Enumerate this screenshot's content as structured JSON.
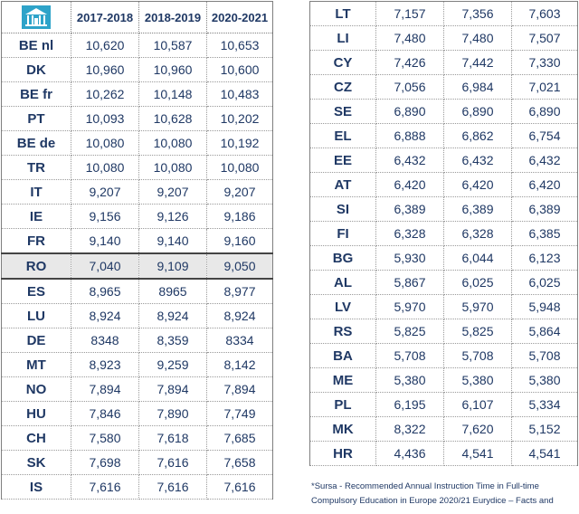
{
  "header": {
    "col1": "2017-2018",
    "col2": "2018-2019",
    "col3": "2020-2021"
  },
  "left_rows": [
    {
      "code": "BE nl",
      "v1": "10,620",
      "v2": "10,587",
      "v3": "10,653"
    },
    {
      "code": "DK",
      "v1": "10,960",
      "v2": "10,960",
      "v3": "10,600"
    },
    {
      "code": "BE fr",
      "v1": "10,262",
      "v2": "10,148",
      "v3": "10,483"
    },
    {
      "code": "PT",
      "v1": "10,093",
      "v2": "10,628",
      "v3": "10,202"
    },
    {
      "code": "BE de",
      "v1": "10,080",
      "v2": "10,080",
      "v3": "10,192"
    },
    {
      "code": "TR",
      "v1": "10,080",
      "v2": "10,080",
      "v3": "10,080"
    },
    {
      "code": "IT",
      "v1": "9,207",
      "v2": "9,207",
      "v3": "9,207"
    },
    {
      "code": "IE",
      "v1": "9,156",
      "v2": "9,126",
      "v3": "9,186"
    },
    {
      "code": "FR",
      "v1": "9,140",
      "v2": "9,140",
      "v3": "9,160"
    },
    {
      "code": "RO",
      "v1": "7,040",
      "v2": "9,109",
      "v3": "9,050"
    },
    {
      "code": "ES",
      "v1": "8,965",
      "v2": "8965",
      "v3": "8,977"
    },
    {
      "code": "LU",
      "v1": "8,924",
      "v2": "8,924",
      "v3": "8,924"
    },
    {
      "code": "DE",
      "v1": "8348",
      "v2": "8,359",
      "v3": "8334"
    },
    {
      "code": "MT",
      "v1": "8,923",
      "v2": "9,259",
      "v3": "8,142"
    },
    {
      "code": "NO",
      "v1": "7,894",
      "v2": "7,894",
      "v3": "7,894"
    },
    {
      "code": "HU",
      "v1": "7,846",
      "v2": "7,890",
      "v3": "7,749"
    },
    {
      "code": "CH",
      "v1": "7,580",
      "v2": "7,618",
      "v3": "7,685"
    },
    {
      "code": "SK",
      "v1": "7,698",
      "v2": "7,616",
      "v3": "7,658"
    },
    {
      "code": "IS",
      "v1": "7,616",
      "v2": "7,616",
      "v3": "7,616"
    }
  ],
  "right_rows": [
    {
      "code": "LT",
      "v1": "7,157",
      "v2": "7,356",
      "v3": "7,603"
    },
    {
      "code": "LI",
      "v1": "7,480",
      "v2": "7,480",
      "v3": "7,507"
    },
    {
      "code": "CY",
      "v1": "7,426",
      "v2": "7,442",
      "v3": "7,330"
    },
    {
      "code": "CZ",
      "v1": "7,056",
      "v2": "6,984",
      "v3": "7,021"
    },
    {
      "code": "SE",
      "v1": "6,890",
      "v2": "6,890",
      "v3": "6,890"
    },
    {
      "code": "EL",
      "v1": "6,888",
      "v2": "6,862",
      "v3": "6,754"
    },
    {
      "code": "EE",
      "v1": "6,432",
      "v2": "6,432",
      "v3": "6,432"
    },
    {
      "code": "AT",
      "v1": "6,420",
      "v2": "6,420",
      "v3": "6,420"
    },
    {
      "code": "SI",
      "v1": "6,389",
      "v2": "6,389",
      "v3": "6,389"
    },
    {
      "code": "FI",
      "v1": "6,328",
      "v2": "6,328",
      "v3": "6,385"
    },
    {
      "code": "BG",
      "v1": "5,930",
      "v2": "6,044",
      "v3": "6,123"
    },
    {
      "code": "AL",
      "v1": "5,867",
      "v2": "6,025",
      "v3": "6,025"
    },
    {
      "code": "LV",
      "v1": "5,970",
      "v2": "5,970",
      "v3": "5,948"
    },
    {
      "code": "RS",
      "v1": "5,825",
      "v2": "5,825",
      "v3": "5,864"
    },
    {
      "code": "BA",
      "v1": "5,708",
      "v2": "5,708",
      "v3": "5,708"
    },
    {
      "code": "ME",
      "v1": "5,380",
      "v2": "5,380",
      "v3": "5,380"
    },
    {
      "code": "PL",
      "v1": "6,195",
      "v2": "6,107",
      "v3": "5,334"
    },
    {
      "code": "MK",
      "v1": "8,322",
      "v2": "7,620",
      "v3": "5,152"
    },
    {
      "code": "HR",
      "v1": "4,436",
      "v2": "4,541",
      "v3": "4,541"
    }
  ],
  "highlight_code": "RO",
  "footnote": "*Sursa - Recommended Annual Instruction Time in Full-time Compulsory Education in Europe 2020/21 Eurydice – Facts and",
  "colors": {
    "text": "#1f3864",
    "logo": "#2ea3c9",
    "highlight_bg": "#e8e8e8"
  },
  "icons": {
    "logo": "school-building-logo-icon"
  }
}
